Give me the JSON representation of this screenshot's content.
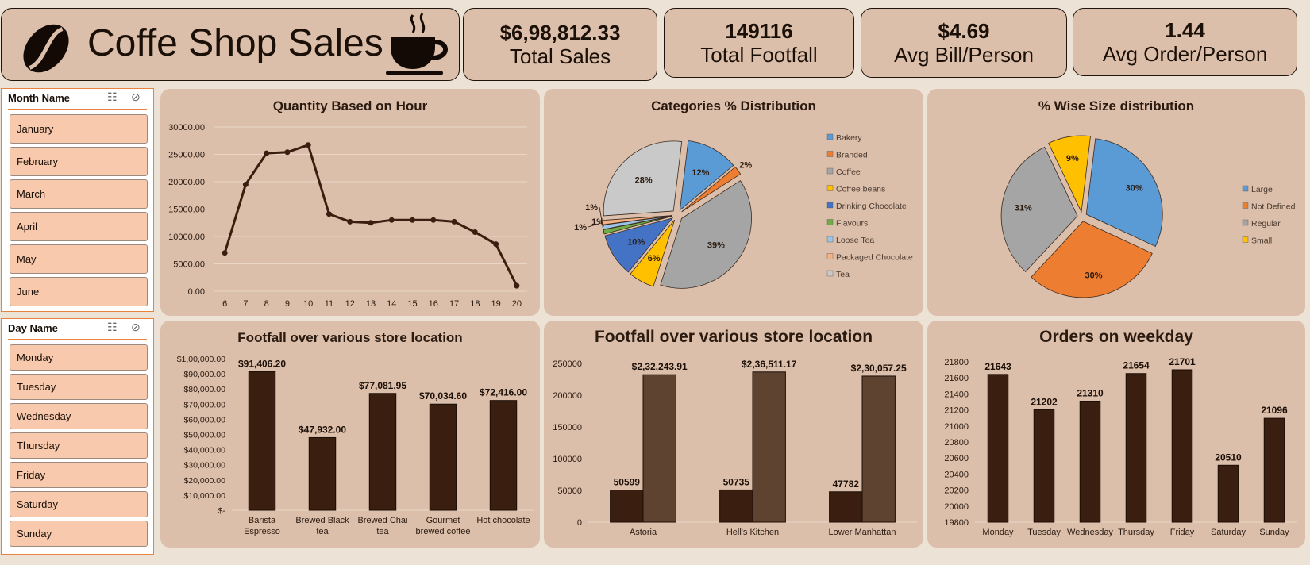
{
  "header": {
    "title": "Coffe Shop Sales"
  },
  "kpis": [
    {
      "value": "$6,98,812.33",
      "label": "Total Sales"
    },
    {
      "value": "149116",
      "label": "Total Footfall"
    },
    {
      "value": "$4.69",
      "label": "Avg Bill/Person"
    },
    {
      "value": "1.44",
      "label": "Avg Order/Person"
    }
  ],
  "slicers": {
    "month": {
      "title": "Month Name",
      "items": [
        "January",
        "February",
        "March",
        "April",
        "May",
        "June"
      ]
    },
    "day": {
      "title": "Day Name",
      "items": [
        "Monday",
        "Tuesday",
        "Wednesday",
        "Thursday",
        "Friday",
        "Saturday",
        "Sunday"
      ]
    }
  },
  "colors": {
    "bar_dark": "#3a1f10",
    "bar_light": "#5e4430",
    "panel": "#dcbfaa",
    "accent": "#e8823e"
  },
  "chart_data": [
    {
      "id": "hour",
      "type": "line",
      "title": "Quantity Based on Hour",
      "x": [
        6,
        7,
        8,
        9,
        10,
        11,
        12,
        13,
        14,
        15,
        16,
        17,
        18,
        19,
        20
      ],
      "values": [
        7000,
        19500,
        25200,
        25400,
        26700,
        14100,
        12700,
        12500,
        13000,
        13000,
        13000,
        12700,
        10800,
        8600,
        1000
      ],
      "ylim": [
        0,
        30000
      ],
      "yticks": [
        "0.00",
        "5000.00",
        "10000.00",
        "15000.00",
        "20000.00",
        "25000.00",
        "30000.00"
      ],
      "grid": true
    },
    {
      "id": "category",
      "type": "pie",
      "title": "Categories % Distribution",
      "labels": [
        "Bakery",
        "Branded",
        "Coffee",
        "Coffee beans",
        "Drinking Chocolate",
        "Flavours",
        "Loose Tea",
        "Packaged Chocolate",
        "Tea"
      ],
      "values": [
        12,
        2,
        39,
        6,
        10,
        1,
        1,
        1,
        28
      ],
      "data_labels": [
        "12%",
        "2%",
        "39%",
        "6%",
        "10%",
        "1%",
        "1%",
        "1%",
        "28%"
      ],
      "colors": [
        "#5b9bd5",
        "#ed7d31",
        "#a5a5a5",
        "#ffc000",
        "#4472c4",
        "#70ad47",
        "#9dc3e6",
        "#f4b183",
        "#c9c9c9"
      ],
      "legend": "right"
    },
    {
      "id": "size",
      "type": "pie",
      "title": "% Wise Size distribution",
      "labels": [
        "Large",
        "Not Defined",
        "Regular",
        "Small"
      ],
      "values": [
        30,
        30,
        31,
        9
      ],
      "data_labels": [
        "30%",
        "30%",
        "31%",
        "9%"
      ],
      "colors": [
        "#5b9bd5",
        "#ed7d31",
        "#a5a5a5",
        "#ffc000"
      ],
      "legend": "right"
    },
    {
      "id": "product",
      "type": "bar",
      "title": "Footfall over various store location",
      "categories": [
        [
          "Barista",
          "Espresso"
        ],
        [
          "Brewed Black",
          "tea"
        ],
        [
          "Brewed Chai",
          "tea"
        ],
        [
          "Gourmet",
          "brewed coffee"
        ],
        [
          "Hot chocolate"
        ]
      ],
      "values": [
        91406.2,
        47932.0,
        77081.95,
        70034.6,
        72416.0
      ],
      "data_labels": [
        "$91,406.20",
        "$47,932.00",
        "$77,081.95",
        "$70,034.60",
        "$72,416.00"
      ],
      "ylim": [
        0,
        100000
      ],
      "yticks": [
        "$-",
        "$10,000.00",
        "$20,000.00",
        "$30,000.00",
        "$40,000.00",
        "$50,000.00",
        "$60,000.00",
        "$70,000.00",
        "$80,000.00",
        "$90,000.00",
        "$1,00,000.00"
      ]
    },
    {
      "id": "store",
      "type": "bar",
      "title": "Footfall over various store location",
      "categories": [
        "Astoria",
        "Hell's Kitchen",
        "Lower Manhattan"
      ],
      "series": [
        {
          "values": [
            50599,
            50735,
            47782
          ],
          "data_labels": [
            "50599",
            "50735",
            "47782"
          ]
        },
        {
          "values": [
            232243.91,
            236511.17,
            230057.25
          ],
          "data_labels": [
            "$2,32,243.91",
            "$2,36,511.17",
            "$2,30,057.25"
          ]
        }
      ],
      "ylim": [
        0,
        250000
      ],
      "yticks": [
        "0",
        "50000",
        "100000",
        "150000",
        "200000",
        "250000"
      ]
    },
    {
      "id": "weekday",
      "type": "bar",
      "title": "Orders on weekday",
      "categories": [
        "Monday",
        "Tuesday",
        "Wednesday",
        "Thursday",
        "Friday",
        "Saturday",
        "Sunday"
      ],
      "values": [
        21643,
        21202,
        21310,
        21654,
        21701,
        20510,
        21096
      ],
      "data_labels": [
        "21643",
        "21202",
        "21310",
        "21654",
        "21701",
        "20510",
        "21096"
      ],
      "ylim": [
        19800,
        21800
      ],
      "yticks": [
        "19800",
        "20000",
        "20200",
        "20400",
        "20600",
        "20800",
        "21000",
        "21200",
        "21400",
        "21600",
        "21800"
      ]
    }
  ]
}
